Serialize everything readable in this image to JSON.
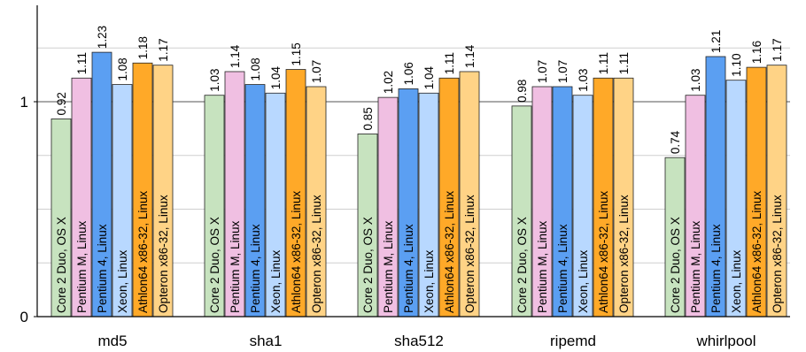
{
  "chart_data": {
    "type": "bar",
    "title": "",
    "xlabel": "",
    "ylabel": "",
    "ylim": [
      0,
      1.4
    ],
    "yticks": [
      0,
      1
    ],
    "ytick_labels": [
      "0",
      "1"
    ],
    "minor_grid": [
      0.25,
      0.5,
      0.75,
      1.25
    ],
    "grid": true,
    "categories": [
      "md5",
      "sha1",
      "sha512",
      "ripemd",
      "whirlpool"
    ],
    "series": [
      {
        "name": "Core 2 Duo, OS X",
        "color": "#c7e3bf",
        "values": [
          0.92,
          1.03,
          0.85,
          0.98,
          0.74
        ]
      },
      {
        "name": "Pentium M, Linux",
        "color": "#f0bfe2",
        "values": [
          1.11,
          1.14,
          1.02,
          1.07,
          1.03
        ]
      },
      {
        "name": "Pentium 4, Linux",
        "color": "#5b9ff2",
        "values": [
          1.23,
          1.08,
          1.06,
          1.07,
          1.21
        ]
      },
      {
        "name": "Xeon, Linux",
        "color": "#b8d8ff",
        "values": [
          1.08,
          1.04,
          1.04,
          1.03,
          1.1
        ]
      },
      {
        "name": "Athlon64 x86-32, Linux",
        "color": "#ffa928",
        "values": [
          1.18,
          1.15,
          1.11,
          1.11,
          1.16
        ]
      },
      {
        "name": "Opteron x86-32, Linux",
        "color": "#ffd386",
        "values": [
          1.17,
          1.07,
          1.14,
          1.11,
          1.17
        ]
      }
    ],
    "value_labels": [
      [
        "0.92",
        "1.03",
        "0.85",
        "0.98",
        "0.74"
      ],
      [
        "1.11",
        "1.14",
        "1.02",
        "1.07",
        "1.03"
      ],
      [
        "1.23",
        "1.08",
        "1.06",
        "1.07",
        "1.21"
      ],
      [
        "1.08",
        "1.04",
        "1.04",
        "1.03",
        "1.10"
      ],
      [
        "1.18",
        "1.15",
        "1.11",
        "1.11",
        "1.16"
      ],
      [
        "1.17",
        "1.07",
        "1.14",
        "1.11",
        "1.17"
      ]
    ]
  }
}
